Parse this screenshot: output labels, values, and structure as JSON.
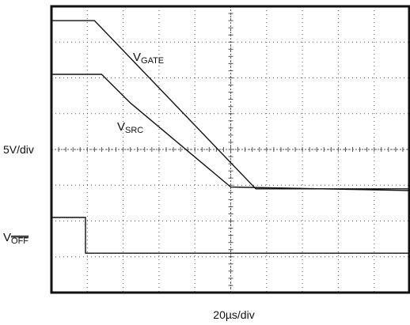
{
  "chart_data": {
    "type": "line",
    "title": "",
    "xlabel": "20µs/div",
    "ylabel": "5V/div",
    "x_divisions": 10,
    "y_divisions": 8,
    "xlim": [
      0,
      10
    ],
    "ylim": [
      0,
      8
    ],
    "grid": true,
    "series": [
      {
        "name": "V_GATE",
        "label_main": "V",
        "label_sub": "GATE",
        "overbar": false,
        "color": "#111111",
        "x": [
          0,
          1.2,
          5.7,
          10
        ],
        "y": [
          7.6,
          7.6,
          2.9,
          2.9
        ]
      },
      {
        "name": "V_SRC",
        "label_main": "V",
        "label_sub": "SRC",
        "overbar": false,
        "color": "#111111",
        "x": [
          0,
          1.4,
          2.2,
          5.0,
          10
        ],
        "y": [
          6.1,
          6.1,
          5.3,
          2.95,
          2.85
        ]
      },
      {
        "name": "V_OFF",
        "label_main": "V",
        "label_sub": "OFF",
        "overbar": true,
        "color": "#111111",
        "x": [
          0,
          0.95,
          0.95,
          10
        ],
        "y": [
          2.1,
          2.1,
          1.1,
          1.1
        ]
      }
    ]
  }
}
